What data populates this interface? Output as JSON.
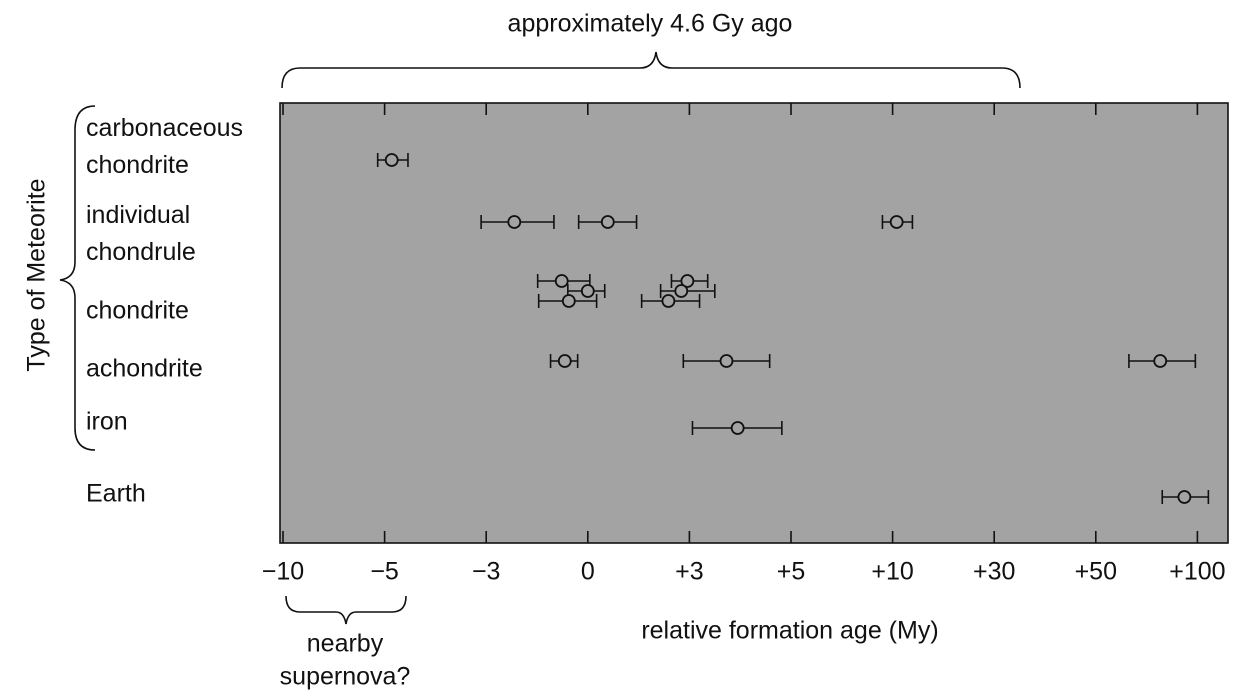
{
  "chart_data": {
    "type": "errorbar",
    "title": "approximately 4.6 Gy ago",
    "xlabel": "relative formation age (My)",
    "ylabel": "Type of Meteorite",
    "annotation": [
      "nearby",
      "supernova?"
    ],
    "xticks": [
      {
        "value": -10,
        "label": "−10"
      },
      {
        "value": -5,
        "label": "−5"
      },
      {
        "value": -3,
        "label": "−3"
      },
      0,
      {
        "value": 3,
        "label": "+3"
      },
      {
        "value": 5,
        "label": "+5"
      },
      {
        "value": 10,
        "label": "+10"
      },
      {
        "value": 30,
        "label": "+30"
      },
      {
        "value": 50,
        "label": "+50"
      },
      {
        "value": 100,
        "label": "+100"
      }
    ],
    "series": [
      {
        "name": [
          "carbonaceous",
          "chondrite"
        ],
        "values": [
          -4.86
        ],
        "low": [
          -5.34
        ],
        "high": [
          -4.54
        ]
      },
      {
        "name": [
          "individual",
          "chondrule"
        ],
        "values": [
          -2.17,
          0.59,
          10.8
        ],
        "low": [
          -3.1,
          -0.27,
          9.5
        ],
        "high": [
          -1.0,
          1.44,
          13.9
        ]
      },
      {
        "name": [
          "chondrite"
        ],
        "values": [
          -0.77,
          0,
          -0.56,
          2.94,
          2.76,
          2.38
        ],
        "low": [
          -1.48,
          -0.59,
          -1.45,
          2.47,
          2.15,
          1.59
        ],
        "high": [
          0.06,
          0.5,
          0.26,
          3.36,
          3.5,
          3.2
        ]
      },
      {
        "name": [
          "achondrite"
        ],
        "values": [
          -0.68,
          3.73,
          81.7
        ],
        "low": [
          -1.1,
          2.82,
          66.3
        ],
        "high": [
          -0.3,
          4.58,
          99
        ]
      },
      {
        "name": [
          "iron"
        ],
        "values": [
          3.95
        ],
        "low": [
          3.06
        ],
        "high": [
          4.82
        ]
      },
      {
        "name": [
          "Earth"
        ],
        "values": [
          93.6
        ],
        "low": [
          82.7
        ],
        "high": [
          105.4
        ]
      }
    ],
    "background": "#a3a3a3"
  }
}
